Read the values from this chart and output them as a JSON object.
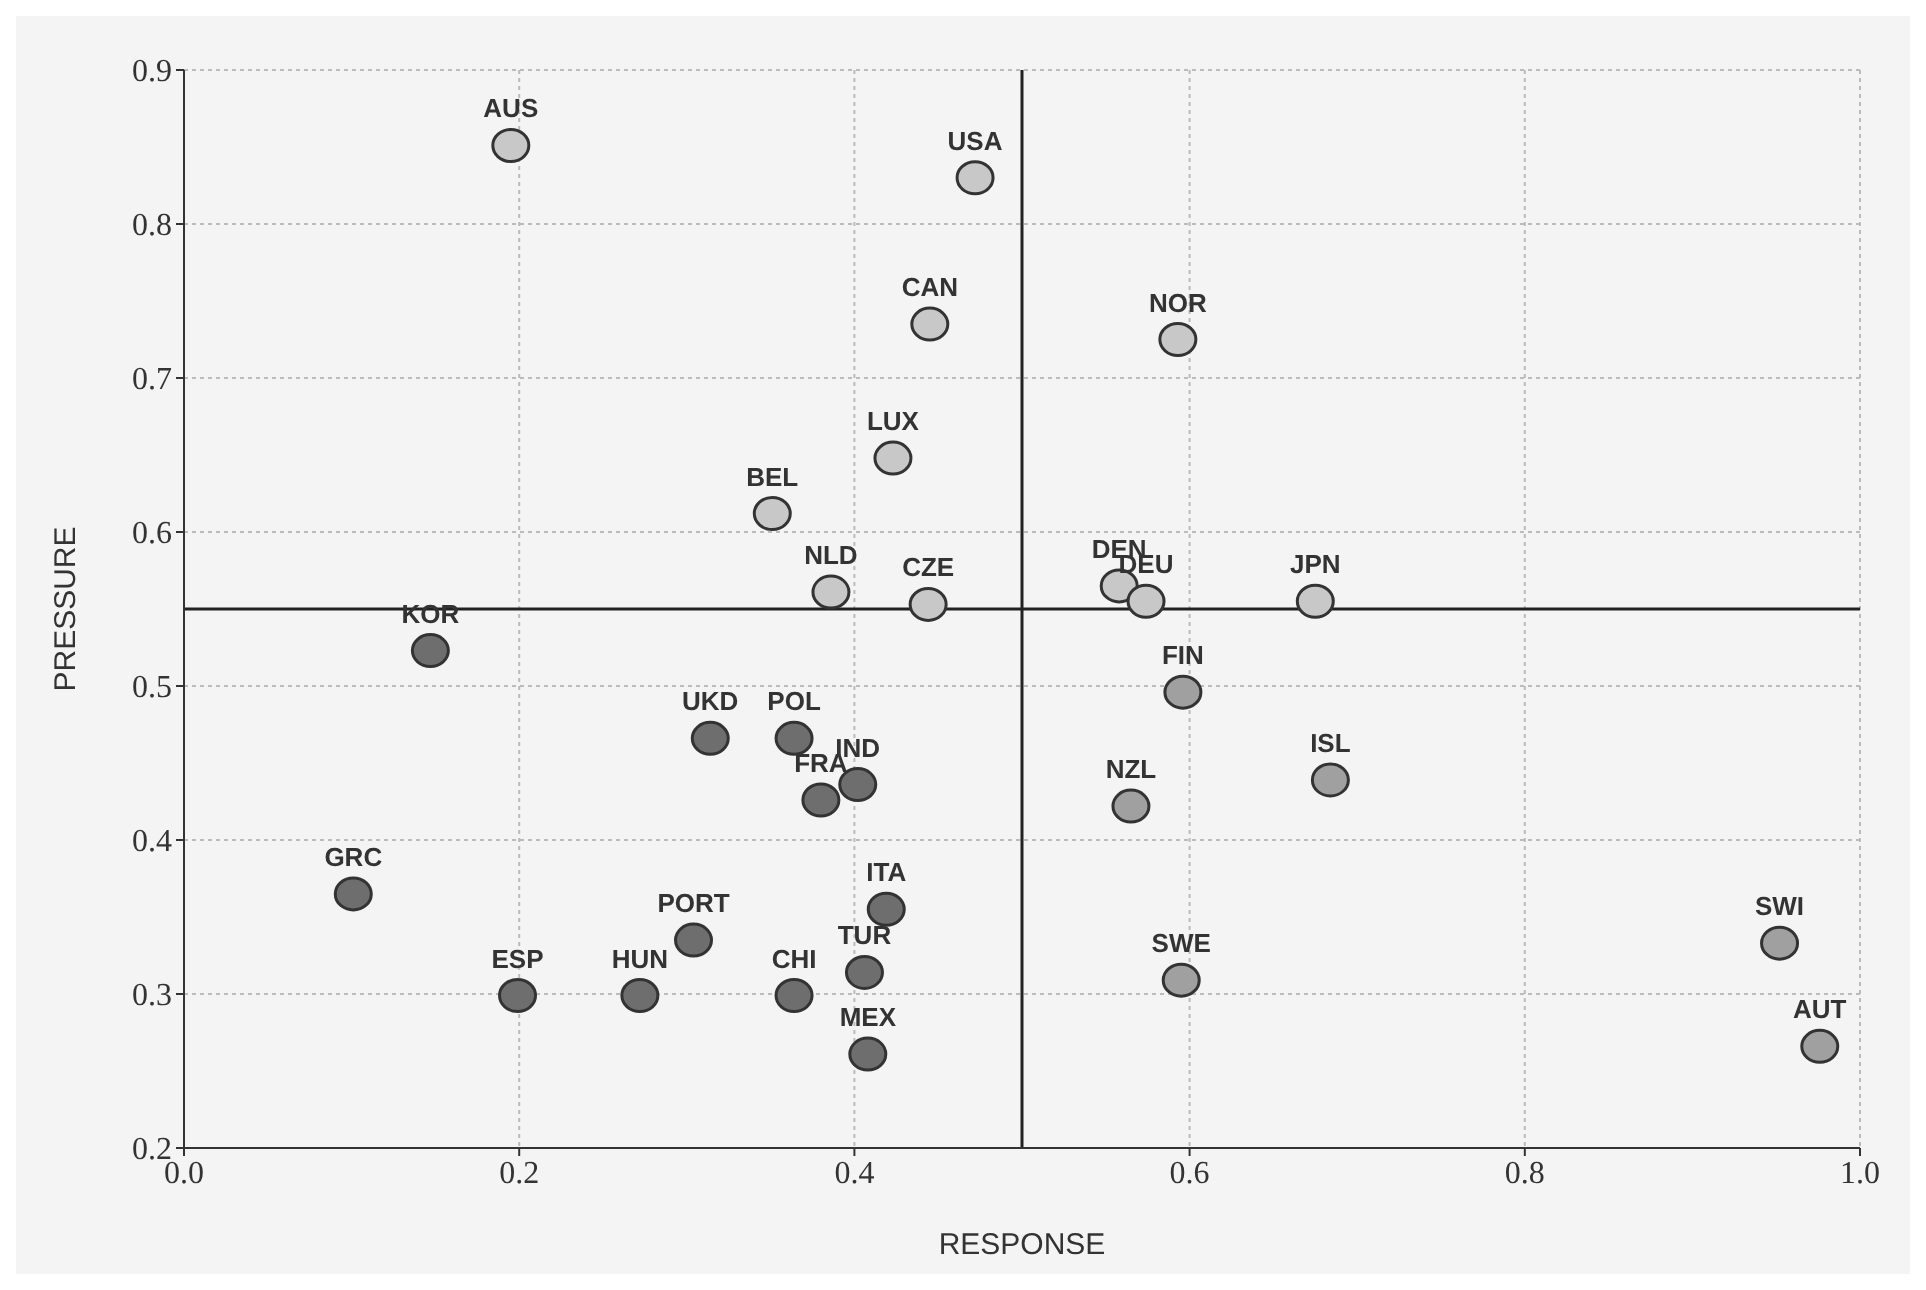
{
  "chart_data": {
    "type": "scatter",
    "xlabel": "RESPONSE",
    "ylabel": "PRESSURE",
    "x": [
      0.195,
      0.472,
      0.445,
      0.593,
      0.423,
      0.351,
      0.386,
      0.444,
      0.558,
      0.574,
      0.675,
      0.147,
      0.596,
      0.314,
      0.364,
      0.402,
      0.38,
      0.684,
      0.565,
      0.101,
      0.419,
      0.304,
      0.952,
      0.406,
      0.364,
      0.199,
      0.272,
      0.595,
      0.408,
      0.976
    ],
    "values": [
      0.851,
      0.83,
      0.735,
      0.725,
      0.648,
      0.612,
      0.561,
      0.553,
      0.565,
      0.555,
      0.555,
      0.523,
      0.496,
      0.466,
      0.466,
      0.436,
      0.426,
      0.439,
      0.422,
      0.365,
      0.355,
      0.335,
      0.333,
      0.314,
      0.299,
      0.299,
      0.299,
      0.309,
      0.261,
      0.266
    ],
    "colors": [
      "#c8c8c8",
      "#c8c8c8",
      "#c8c8c8",
      "#c8c8c8",
      "#c8c8c8",
      "#c8c8c8",
      "#c8c8c8",
      "#c8c8c8",
      "#c8c8c8",
      "#c8c8c8",
      "#c8c8c8",
      "#6e6e6e",
      "#a0a0a0",
      "#6e6e6e",
      "#6e6e6e",
      "#6e6e6e",
      "#6e6e6e",
      "#a0a0a0",
      "#a0a0a0",
      "#6e6e6e",
      "#6e6e6e",
      "#6e6e6e",
      "#a0a0a0",
      "#6e6e6e",
      "#6e6e6e",
      "#6e6e6e",
      "#6e6e6e",
      "#a0a0a0",
      "#6e6e6e",
      "#a0a0a0"
    ],
    "annotations": [
      {
        "text": "AUS",
        "x": 0.195,
        "y": 0.851
      },
      {
        "text": "USA",
        "x": 0.472,
        "y": 0.83
      },
      {
        "text": "CAN",
        "x": 0.445,
        "y": 0.735
      },
      {
        "text": "NOR",
        "x": 0.593,
        "y": 0.725
      },
      {
        "text": "LUX",
        "x": 0.423,
        "y": 0.648
      },
      {
        "text": "BEL",
        "x": 0.351,
        "y": 0.612
      },
      {
        "text": "NLD",
        "x": 0.386,
        "y": 0.561
      },
      {
        "text": "CZE",
        "x": 0.444,
        "y": 0.553
      },
      {
        "text": "DEN",
        "x": 0.558,
        "y": 0.565
      },
      {
        "text": "DEU",
        "x": 0.574,
        "y": 0.555
      },
      {
        "text": "JPN",
        "x": 0.675,
        "y": 0.555
      },
      {
        "text": "KOR",
        "x": 0.147,
        "y": 0.523
      },
      {
        "text": "FIN",
        "x": 0.596,
        "y": 0.496
      },
      {
        "text": "UKD",
        "x": 0.314,
        "y": 0.466
      },
      {
        "text": "POL",
        "x": 0.364,
        "y": 0.466
      },
      {
        "text": "IND",
        "x": 0.402,
        "y": 0.436
      },
      {
        "text": "FRA",
        "x": 0.38,
        "y": 0.426
      },
      {
        "text": "ISL",
        "x": 0.684,
        "y": 0.439
      },
      {
        "text": "NZL",
        "x": 0.565,
        "y": 0.422
      },
      {
        "text": "GRC",
        "x": 0.101,
        "y": 0.365
      },
      {
        "text": "ITA",
        "x": 0.419,
        "y": 0.355
      },
      {
        "text": "PORT",
        "x": 0.304,
        "y": 0.335
      },
      {
        "text": "SWI",
        "x": 0.952,
        "y": 0.333
      },
      {
        "text": "TUR",
        "x": 0.406,
        "y": 0.314
      },
      {
        "text": "CHI",
        "x": 0.364,
        "y": 0.299
      },
      {
        "text": "ESP",
        "x": 0.199,
        "y": 0.299
      },
      {
        "text": "HUN",
        "x": 0.272,
        "y": 0.299
      },
      {
        "text": "SWE",
        "x": 0.595,
        "y": 0.309
      },
      {
        "text": "MEX",
        "x": 0.408,
        "y": 0.261
      },
      {
        "text": "AUT",
        "x": 0.976,
        "y": 0.266
      }
    ],
    "xlim": [
      0,
      1
    ],
    "ylim": [
      0.2,
      0.9
    ],
    "xticks": [
      {
        "value": 0,
        "label": "0.0"
      },
      {
        "value": 0.2,
        "label": "0.2"
      },
      {
        "value": 0.4,
        "label": "0.4"
      },
      {
        "value": 0.6,
        "label": "0.6"
      },
      {
        "value": 0.8,
        "label": "0.8"
      },
      {
        "value": 1,
        "label": "1.0"
      }
    ],
    "yticks": [
      {
        "value": 0.2,
        "label": "0.2"
      },
      {
        "value": 0.3,
        "label": "0.3"
      },
      {
        "value": 0.4,
        "label": "0.4"
      },
      {
        "value": 0.5,
        "label": "0.5"
      },
      {
        "value": 0.6,
        "label": "0.6"
      },
      {
        "value": 0.7,
        "label": "0.7"
      },
      {
        "value": 0.8,
        "label": "0.8"
      },
      {
        "value": 0.9,
        "label": "0.9"
      }
    ],
    "ref_lines": [
      {
        "axis": "x",
        "value": 0.5
      },
      {
        "axis": "y",
        "value": 0.55
      }
    ],
    "grid": true,
    "marker": "circle"
  }
}
